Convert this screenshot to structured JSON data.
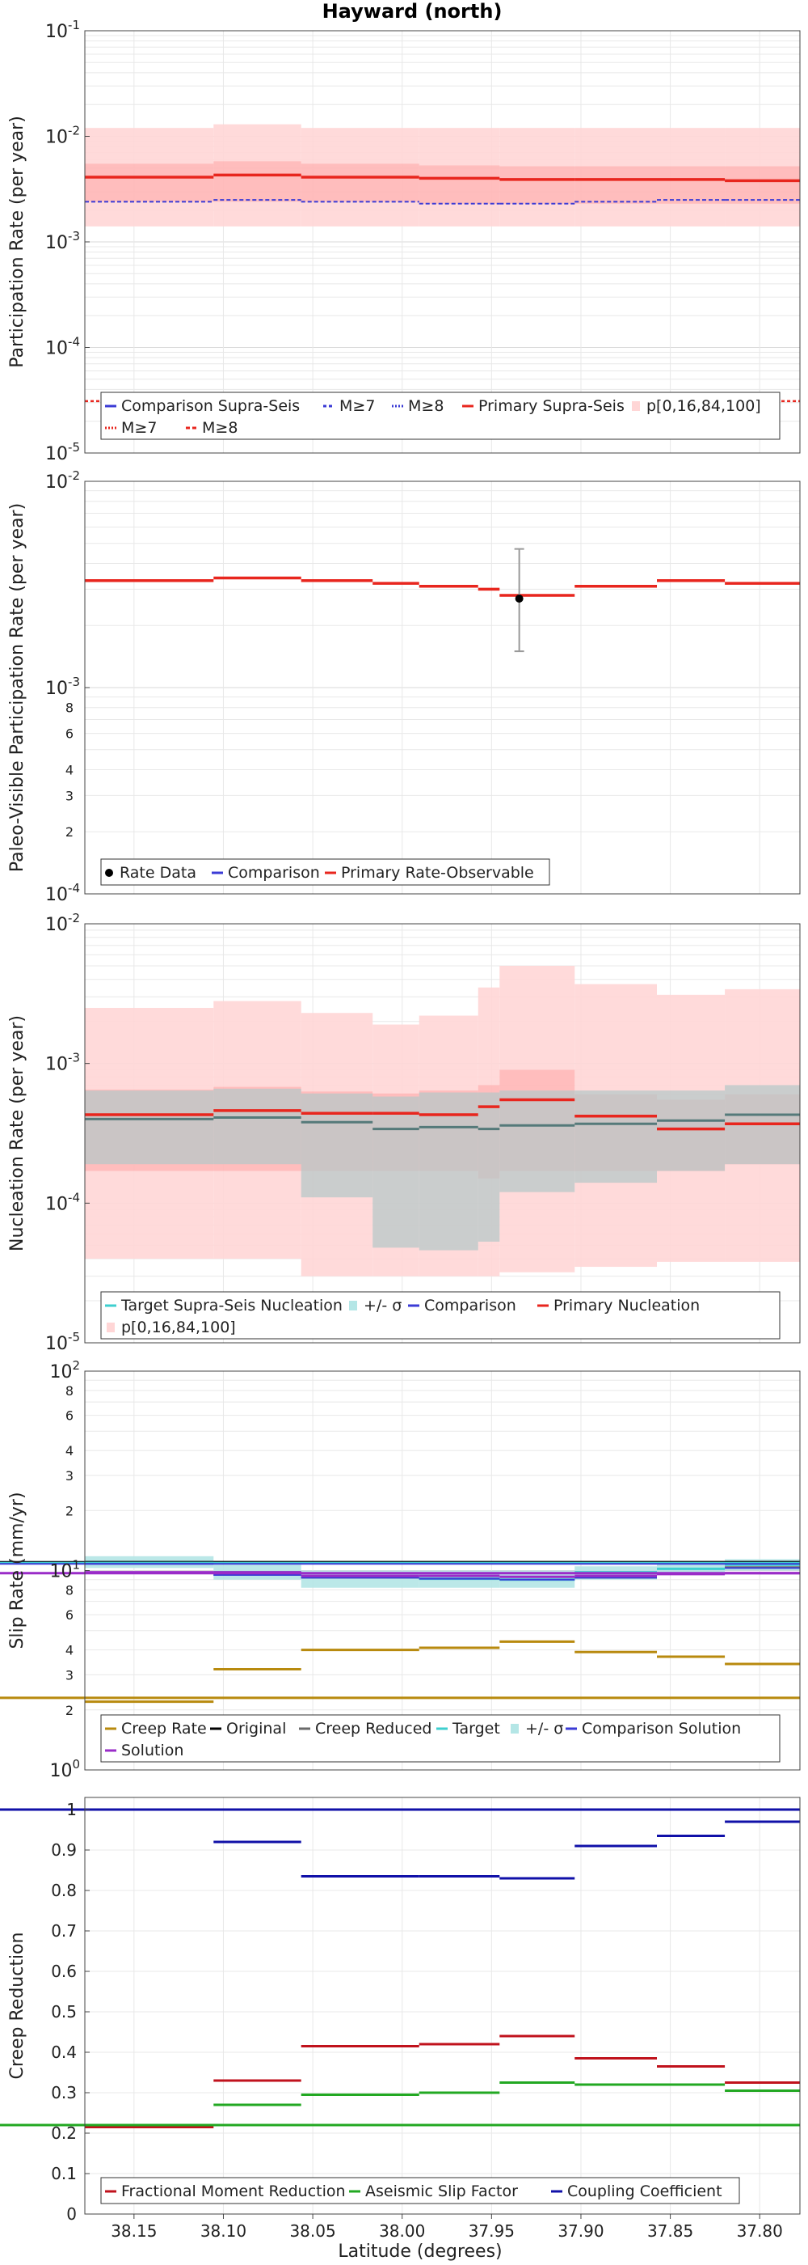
{
  "figure_title": "Hayward (north)",
  "x_axis": {
    "label": "Latitude (degrees)",
    "range": [
      38.1775,
      37.7775
    ],
    "ticks": [
      38.15,
      38.1,
      38.05,
      38.0,
      37.95,
      37.9,
      37.85,
      37.8
    ],
    "tick_labels": [
      "38.15",
      "38.10",
      "38.05",
      "38.00",
      "37.95",
      "37.90",
      "37.85",
      "37.80"
    ]
  },
  "segment_edges": [
    38.1775,
    38.1055,
    38.0565,
    37.9905,
    37.9455,
    37.9035,
    37.8575,
    37.8195,
    37.7775
  ],
  "colors": {
    "primary": "#e8261e",
    "primary_band_light": "#ffd6d6",
    "primary_band_dark": "#ff9999",
    "comparison": "#3b3bd6",
    "comparison_band": "#b8c8c8",
    "target": "#3ecfcf",
    "target_band": "#b4e6e6",
    "creep_rate": "#b88a0e",
    "original": "#000000",
    "creep_reduced": "#6a6a6a",
    "solution": "#9a2cc8",
    "fractional_moment": "#c0121c",
    "aseismic": "#22a822",
    "coupling": "#1010a8",
    "grid": "#e8e8e8"
  },
  "chart_data": [
    {
      "type": "line",
      "id": "participation",
      "title": "Hayward (north)",
      "ylabel": "Participation Rate (per year)",
      "yscale": "log",
      "ylim": [
        1e-05,
        0.1
      ],
      "ytick_labels": [
        {
          "base": "10",
          "exp": "-5",
          "value": 1e-05
        },
        {
          "base": "10",
          "exp": "-4",
          "value": 0.0001
        },
        {
          "base": "10",
          "exp": "-3",
          "value": 0.001
        },
        {
          "base": "10",
          "exp": "-2",
          "value": 0.01
        },
        {
          "base": "10",
          "exp": "-1",
          "value": 0.1
        }
      ],
      "band_outer": {
        "low": [
          0.0014,
          0.0014,
          0.0014,
          0.0014,
          0.0014,
          0.0014,
          0.0014,
          0.0014
        ],
        "high": [
          0.012,
          0.013,
          0.012,
          0.012,
          0.012,
          0.012,
          0.012,
          0.012
        ]
      },
      "band_inner": {
        "low": [
          0.0024,
          0.0024,
          0.0024,
          0.0023,
          0.0023,
          0.0023,
          0.0023,
          0.0023
        ],
        "high": [
          0.0055,
          0.0058,
          0.0055,
          0.0053,
          0.0052,
          0.0052,
          0.0052,
          0.0052
        ]
      },
      "primary": [
        0.0041,
        0.0043,
        0.0041,
        0.004,
        0.0039,
        0.0039,
        0.0039,
        0.0038
      ],
      "comparison_m8": [
        0.0024,
        0.0025,
        0.0024,
        0.0023,
        0.0023,
        0.0024,
        0.0025,
        0.0025
      ],
      "primary_m7": [
        3.1e-05,
        3.1e-05,
        3.1e-05,
        3.1e-05,
        3.1e-05,
        3.1e-05,
        3.1e-05,
        3.1e-05
      ],
      "legend": [
        "Comparison Supra-Seis",
        "M≥7",
        "M≥8",
        "Primary Supra-Seis",
        "p[0,16,84,100]",
        "M≥7",
        "M≥8"
      ]
    },
    {
      "type": "line",
      "id": "paleo",
      "ylabel": "Paleo-Visible Participation Rate (per year)",
      "yscale": "log",
      "ylim": [
        0.0001,
        0.01
      ],
      "ytick_labels": [
        {
          "base": "10",
          "exp": "-4",
          "value": 0.0001
        },
        {
          "base": "10",
          "exp": "-3",
          "value": 0.001
        },
        {
          "base": "10",
          "exp": "-2",
          "value": 0.01
        }
      ],
      "minor_labels": [
        "2",
        "3",
        "4",
        "6",
        "8"
      ],
      "primary": [
        0.0033,
        0.0034,
        0.0033,
        0.0032,
        0.0031,
        0.003,
        0.0028,
        0.0031,
        0.0033,
        0.0032
      ],
      "primary_edges": [
        38.1775,
        38.1055,
        38.0565,
        38.0165,
        37.9905,
        37.9575,
        37.9455,
        37.9035,
        37.8575,
        37.8195,
        37.7775
      ],
      "rate_data": {
        "x": 37.9345,
        "y": 0.0027,
        "low": 0.0015,
        "high": 0.0047
      },
      "legend": [
        "Rate Data",
        "Comparison",
        "Primary Rate-Observable"
      ]
    },
    {
      "type": "line",
      "id": "nucleation",
      "ylabel": "Nucleation Rate (per year)",
      "yscale": "log",
      "ylim": [
        1e-05,
        0.01
      ],
      "ytick_labels": [
        {
          "base": "10",
          "exp": "-5",
          "value": 1e-05
        },
        {
          "base": "10",
          "exp": "-4",
          "value": 0.0001
        },
        {
          "base": "10",
          "exp": "-3",
          "value": 0.001
        },
        {
          "base": "10",
          "exp": "-2",
          "value": 0.01
        }
      ],
      "band_outer": {
        "low": [
          4e-05,
          4e-05,
          3e-05,
          3e-05,
          3e-05,
          3e-05,
          3.2e-05,
          3.5e-05,
          3.8e-05,
          3.8e-05
        ],
        "high": [
          0.0025,
          0.0028,
          0.0023,
          0.0019,
          0.0022,
          0.0035,
          0.005,
          0.0037,
          0.0031,
          0.0034
        ]
      },
      "band_inner": {
        "low": [
          0.00017,
          0.00017,
          0.00017,
          0.00017,
          0.00017,
          0.00015,
          0.00017,
          0.00017,
          0.00017,
          0.00019
        ],
        "high": [
          0.00065,
          0.00068,
          0.00063,
          0.00061,
          0.00064,
          0.0007,
          0.0009,
          0.0006,
          0.00055,
          0.0006
        ]
      },
      "primary": [
        0.00043,
        0.00046,
        0.00044,
        0.00044,
        0.00043,
        0.00049,
        0.00055,
        0.00042,
        0.00034,
        0.00037
      ],
      "comparison": [
        0.0004,
        0.00041,
        0.00038,
        0.00034,
        0.00035,
        0.00034,
        0.00036,
        0.00037,
        0.00039,
        0.00043
      ],
      "comparison_band": {
        "low": [
          0.00019,
          0.00019,
          0.00011,
          4.8e-05,
          4.6e-05,
          5.3e-05,
          0.00012,
          0.00014,
          0.00017,
          0.00019
        ],
        "high": [
          0.00064,
          0.00066,
          0.00061,
          0.00058,
          0.00062,
          0.00062,
          0.00064,
          0.00064,
          0.00064,
          0.0007
        ]
      },
      "edges": [
        38.1775,
        38.1055,
        38.0565,
        38.0165,
        37.9905,
        37.9575,
        37.9455,
        37.9035,
        37.8575,
        37.8195,
        37.7775
      ],
      "legend": [
        "Target Supra-Seis Nucleation",
        "+/- σ",
        "Comparison",
        "Primary Nucleation",
        "p[0,16,84,100]"
      ]
    },
    {
      "type": "line",
      "id": "slip",
      "ylabel": "Slip Rate (mm/yr)",
      "yscale": "log",
      "ylim": [
        1,
        100
      ],
      "ytick_labels": [
        {
          "base": "10",
          "exp": "0",
          "value": 1
        },
        {
          "base": "10",
          "exp": "1",
          "value": 10
        },
        {
          "base": "10",
          "exp": "2",
          "value": 100
        }
      ],
      "minor_labels": [
        "2",
        "3",
        "4",
        "6",
        "8",
        "2",
        "3",
        "4",
        "6",
        "8"
      ],
      "creep_rate": [
        2.2,
        3.2,
        4.0,
        4.1,
        4.4,
        3.9,
        3.7,
        3.4,
        2.3
      ],
      "original": [
        11,
        11,
        11,
        11,
        11,
        11,
        11,
        11,
        11
      ],
      "target": [
        10.9,
        9.8,
        9.3,
        9.1,
        9.0,
        9.8,
        10.2,
        10.7,
        10.9
      ],
      "target_band": {
        "low": [
          10.3,
          9.0,
          8.2,
          8.2,
          8.2,
          9.0,
          9.5,
          10.0,
          10.3
        ],
        "high": [
          11.8,
          10.7,
          10.0,
          10.0,
          10.0,
          10.5,
          10.9,
          11.4,
          11.8
        ]
      },
      "creep_reduced": [
        10.9,
        9.5,
        9.2,
        9.1,
        9.0,
        9.2,
        9.7,
        10.4,
        10.9
      ],
      "comparison_solution": [
        10.8,
        9.5,
        9.2,
        9.1,
        9.0,
        9.2,
        9.7,
        10.3,
        10.8
      ],
      "solution": [
        9.8,
        9.8,
        9.4,
        9.4,
        9.3,
        9.4,
        9.6,
        9.7,
        9.7
      ],
      "legend": [
        "Creep Rate",
        "Original",
        "Creep Reduced",
        "Target",
        "+/- σ",
        "Comparison Solution",
        "Solution"
      ]
    },
    {
      "type": "line",
      "id": "creep",
      "ylabel": "Creep Reduction",
      "yscale": "linear",
      "ylim": [
        0,
        1.03
      ],
      "ytick_labels": [
        {
          "label": "0",
          "value": 0
        },
        {
          "label": "0.1",
          "value": 0.1
        },
        {
          "label": "0.2",
          "value": 0.2
        },
        {
          "label": "0.3",
          "value": 0.3
        },
        {
          "label": "0.4",
          "value": 0.4
        },
        {
          "label": "0.5",
          "value": 0.5
        },
        {
          "label": "0.6",
          "value": 0.6
        },
        {
          "label": "0.7",
          "value": 0.7
        },
        {
          "label": "0.8",
          "value": 0.8
        },
        {
          "label": "0.9",
          "value": 0.9
        },
        {
          "label": "1",
          "value": 1
        }
      ],
      "fractional_moment": [
        0.215,
        0.33,
        0.415,
        0.42,
        0.44,
        0.385,
        0.365,
        0.325,
        0.22
      ],
      "aseismic": [
        0.22,
        0.27,
        0.295,
        0.3,
        0.325,
        0.32,
        0.32,
        0.305,
        0.22
      ],
      "coupling": [
        1.0,
        0.92,
        0.835,
        0.835,
        0.83,
        0.91,
        0.935,
        0.97,
        1.0
      ],
      "legend": [
        "Fractional Moment Reduction",
        "Aseismic Slip Factor",
        "Coupling Coefficient"
      ]
    }
  ]
}
